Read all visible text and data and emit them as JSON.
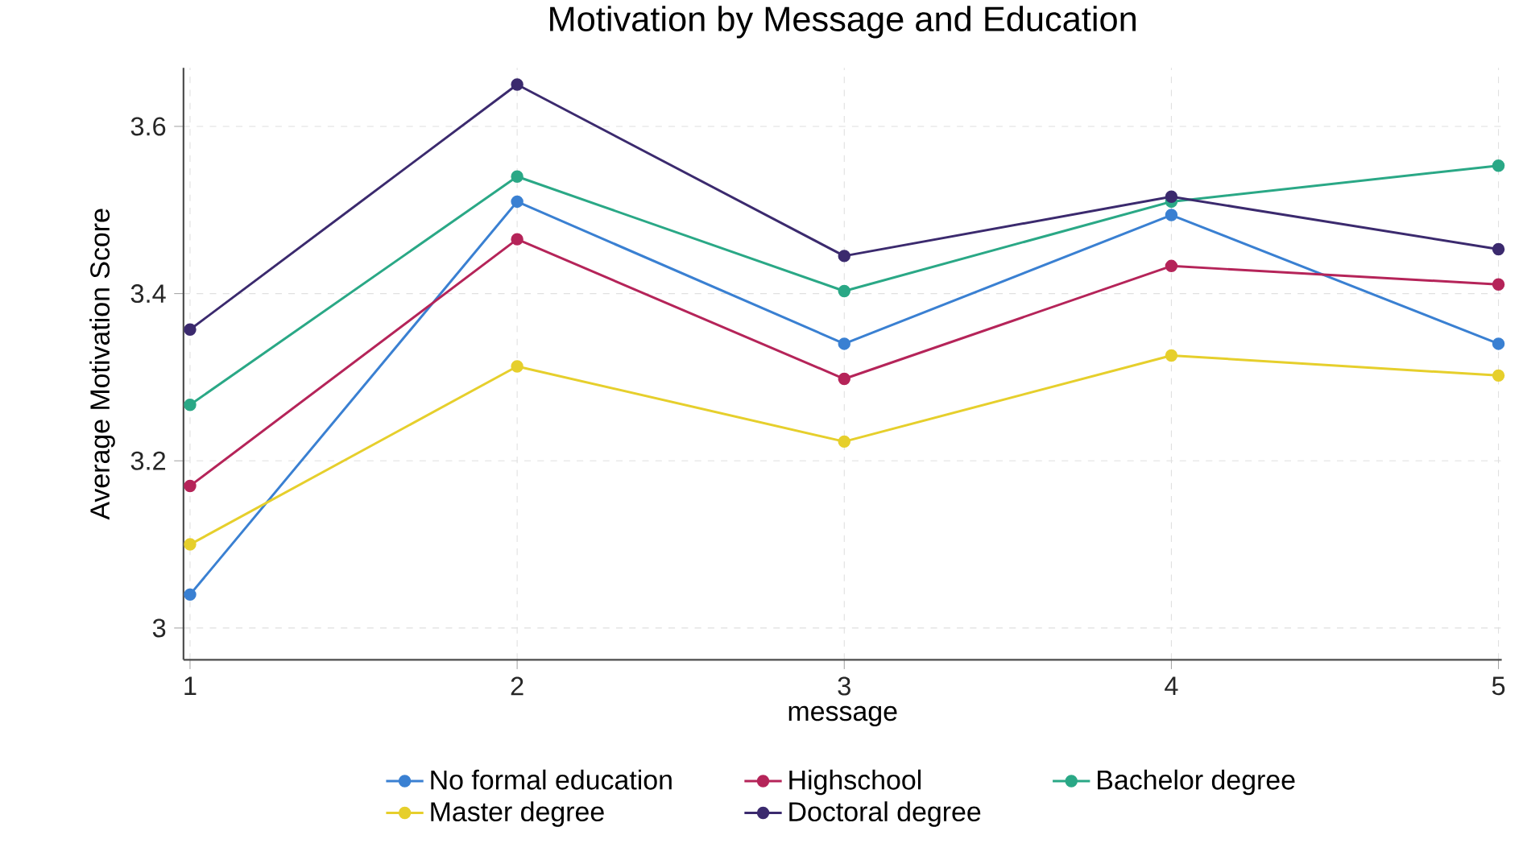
{
  "chart_data": {
    "type": "line",
    "title": "Motivation by Message and Education",
    "xlabel": "message",
    "ylabel": "Average Motivation Score",
    "x": [
      1,
      2,
      3,
      4,
      5
    ],
    "series": [
      {
        "name": "No formal education",
        "color": "#3a80d2",
        "values": [
          3.04,
          3.51,
          3.34,
          3.494,
          3.34
        ]
      },
      {
        "name": "Highschool",
        "color": "#b52459",
        "values": [
          3.17,
          3.465,
          3.298,
          3.433,
          3.411
        ]
      },
      {
        "name": "Bachelor degree",
        "color": "#2aa886",
        "values": [
          3.267,
          3.54,
          3.403,
          3.51,
          3.553
        ]
      },
      {
        "name": "Master degree",
        "color": "#e6cf2c",
        "values": [
          3.1,
          3.313,
          3.223,
          3.326,
          3.302
        ]
      },
      {
        "name": "Doctoral degree",
        "color": "#3b2a6e",
        "values": [
          3.357,
          3.65,
          3.445,
          3.516,
          3.453
        ]
      }
    ],
    "xlim": [
      0.98,
      5.01
    ],
    "ylim": [
      2.962,
      3.67
    ],
    "xticks": [
      1,
      2,
      3,
      4,
      5
    ],
    "yticks": [
      3,
      {
        "value": 3.2,
        "label": "3.2"
      },
      {
        "value": 3.4,
        "label": "3.4"
      },
      {
        "value": 3.6,
        "label": "3.6"
      }
    ],
    "grid": true,
    "legend": "bottom",
    "marker": "circle",
    "line_style": "solid"
  }
}
